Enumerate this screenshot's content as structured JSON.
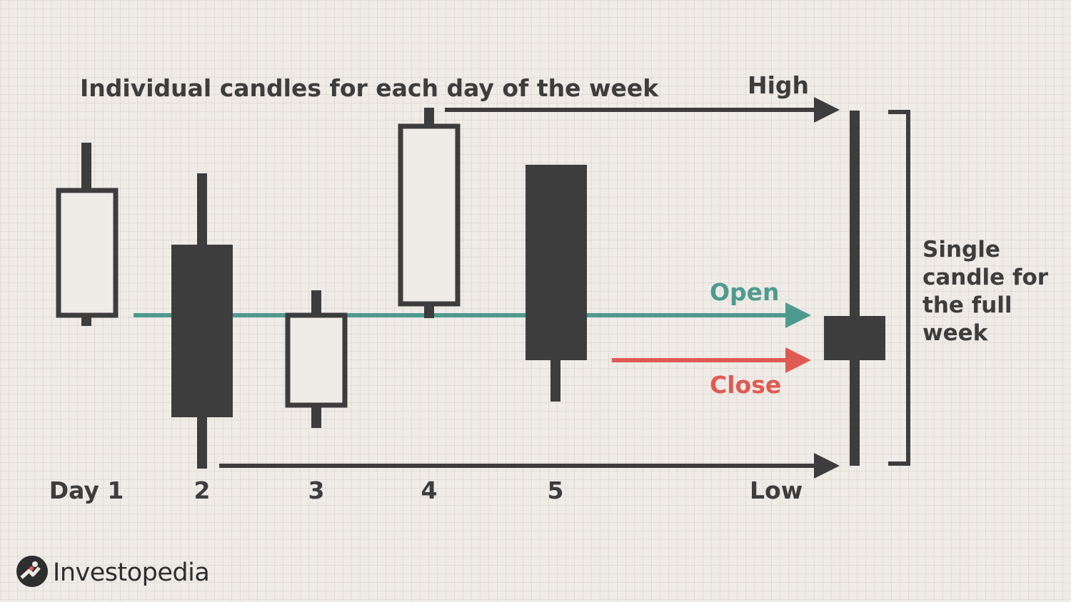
{
  "heading": "Individual candles for each day of the week",
  "day_labels": [
    "Day 1",
    "2",
    "3",
    "4",
    "5"
  ],
  "labels": {
    "high": "High",
    "low": "Low",
    "open": "Open",
    "close": "Close",
    "single_candle": "Single candle for the full week"
  },
  "logo": {
    "text": "Investopedia",
    "icon": "investopedia-logo-icon"
  },
  "colors": {
    "background": "#efebe6",
    "candle": "#3d3d3d",
    "open": "#4f9a8f",
    "close": "#e05a54"
  }
}
